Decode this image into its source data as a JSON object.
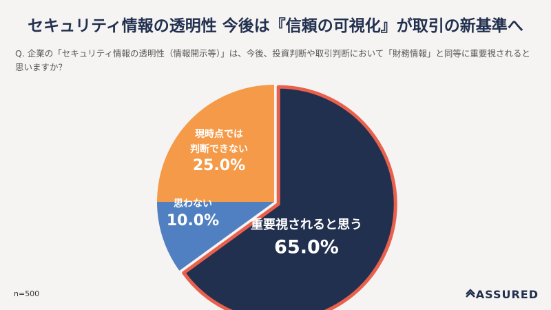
{
  "chart_data": {
    "type": "pie",
    "title": "セキュリティ情報の透明性 今後は『信頼の可視化』が取引の新基準へ",
    "subtitle": "Q. 企業の「セキュリティ情報の透明性（情報開示等）」は、今後、投資判断や取引判断において「財務情報」と同等に重要視されると思いますか？",
    "categories": [
      "重要視されると思う",
      "思わない",
      "現時点では\n判断できない"
    ],
    "values": [
      65,
      10,
      25
    ],
    "value_labels": [
      "65.0%",
      "10.0%",
      "25.0%"
    ],
    "colors": [
      "#22304f",
      "#5080c1",
      "#f49a48"
    ],
    "highlight_color": "#e9604c",
    "note": "n=500"
  },
  "footer": {
    "brand": "ASSURED"
  }
}
